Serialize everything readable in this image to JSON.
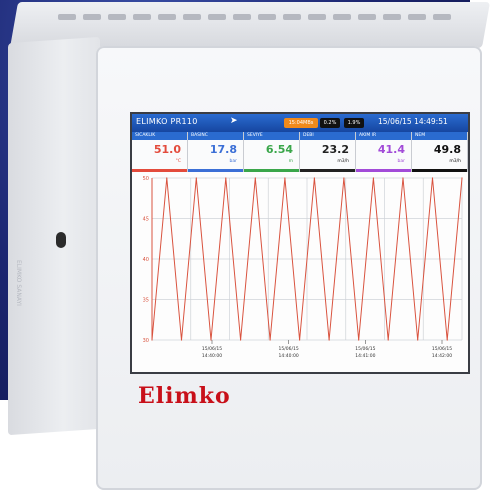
{
  "device": {
    "brand": "Elimko",
    "title": "ELIMKO PR110",
    "datetime": "15/06/15 14:49:51",
    "badges": [
      "15:04MBs",
      "0.2%",
      "1.9%"
    ]
  },
  "channels": [
    {
      "label": "SICAKLIK",
      "value": "51.0",
      "unit": "°C",
      "color": "#e34b3c"
    },
    {
      "label": "BASINC",
      "value": "17.8",
      "unit": "bar",
      "color": "#3b6fd6"
    },
    {
      "label": "SEVIYE",
      "value": "6.54",
      "unit": "m",
      "color": "#3aa64a"
    },
    {
      "label": "DEBI",
      "value": "23.2",
      "unit": "m3/h",
      "color": "#222222"
    },
    {
      "label": "AKIM IR",
      "value": "41.4",
      "unit": "bar",
      "color": "#a24bd8"
    },
    {
      "label": "NEM",
      "value": "49.8",
      "unit": "m3/h",
      "color": "#111111"
    }
  ],
  "chart_data": {
    "type": "line",
    "series": [
      {
        "values": [
          0,
          100,
          0,
          100,
          0,
          100,
          0,
          100,
          0,
          100,
          0,
          100,
          0,
          100,
          0,
          100,
          0,
          100,
          0,
          100,
          0,
          100
        ],
        "color": "#d9533f"
      }
    ],
    "y_tick_labels": [
      "50",
      "45",
      "40",
      "35",
      "30"
    ],
    "x_tick_labels": [
      {
        "date": "15/06/15",
        "time": "14:40:00"
      },
      {
        "date": "15/06/15",
        "time": "14:40:00"
      },
      {
        "date": "15/06/15",
        "time": "14:41:00"
      },
      {
        "date": "15/06/15",
        "time": "14:42:00"
      }
    ],
    "grid": true
  },
  "side_text": "ELIMKO SANAYI"
}
